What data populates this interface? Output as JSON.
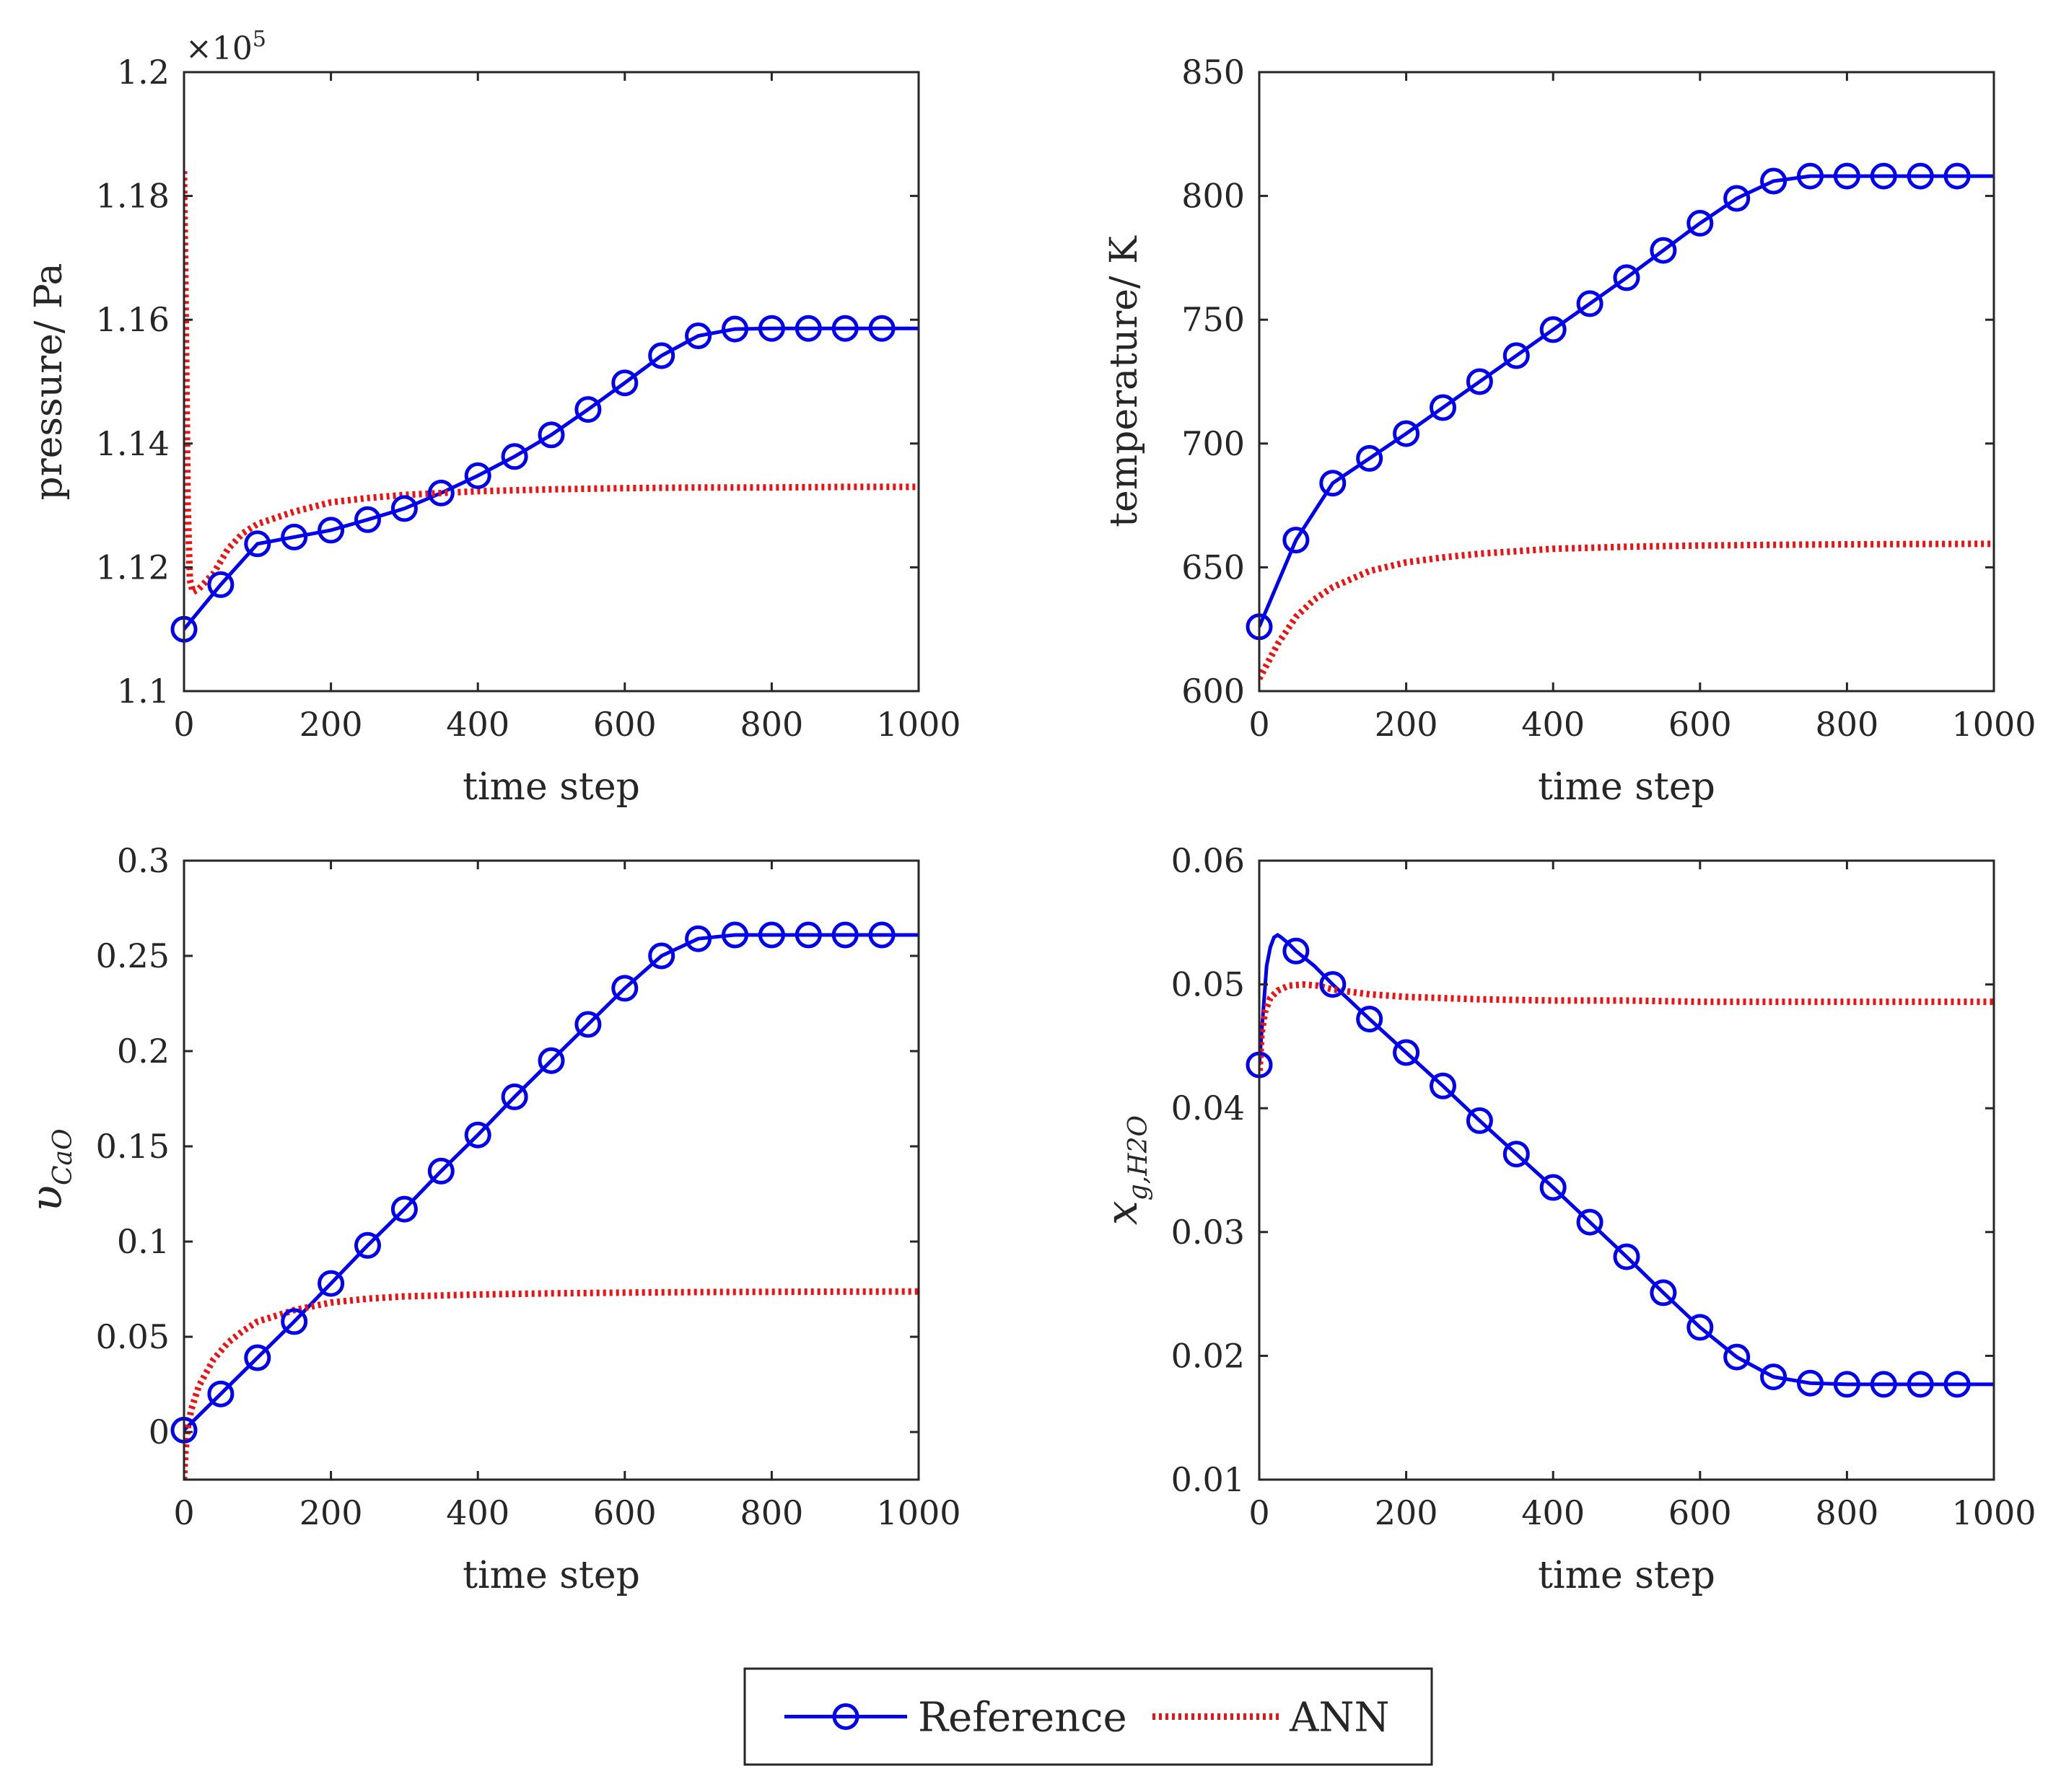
{
  "chart_data": [
    {
      "type": "line",
      "id": "pressure",
      "ylabel": "pressure/ Pa",
      "xlabel": "time step",
      "multiplier": {
        "base": "×10",
        "exponent": "5"
      },
      "xlim": [
        0,
        1000
      ],
      "ylim": [
        1.1,
        1.2
      ],
      "xticks": [
        0,
        200,
        400,
        600,
        800,
        1000
      ],
      "xtick_labels": [
        "0",
        "200",
        "400",
        "600",
        "800",
        "1000"
      ],
      "yticks": [
        1.1,
        1.12,
        1.14,
        1.16,
        1.18,
        1.2
      ],
      "ytick_labels": [
        "1.1",
        "1.12",
        "1.14",
        "1.16",
        "1.18",
        "1.2"
      ],
      "series": [
        {
          "name": "Reference",
          "style": "solid-circle",
          "color": "#0000ee",
          "x": [
            0,
            50,
            100,
            150,
            200,
            250,
            300,
            350,
            400,
            450,
            500,
            550,
            600,
            650,
            700,
            750,
            800,
            850,
            900,
            950,
            1000
          ],
          "y": [
            1.11,
            1.1172,
            1.1238,
            1.1249,
            1.126,
            1.1277,
            1.1295,
            1.132,
            1.1348,
            1.1379,
            1.1414,
            1.1455,
            1.1498,
            1.1542,
            1.1574,
            1.1585,
            1.1586,
            1.1586,
            1.1586,
            1.1586,
            1.1586
          ],
          "marker_x": [
            0,
            50,
            100,
            150,
            200,
            250,
            300,
            350,
            400,
            450,
            500,
            550,
            600,
            650,
            700,
            750,
            800,
            850,
            900,
            950
          ]
        },
        {
          "name": "ANN",
          "style": "dotted",
          "color": "#ee1111",
          "x": [
            0,
            2,
            5,
            8,
            12,
            20,
            40,
            60,
            80,
            100,
            150,
            200,
            250,
            300,
            350,
            400,
            500,
            600,
            700,
            800,
            900,
            1000
          ],
          "y": [
            1.184,
            1.165,
            1.13,
            1.118,
            1.116,
            1.1165,
            1.119,
            1.123,
            1.1255,
            1.127,
            1.129,
            1.1305,
            1.1312,
            1.1317,
            1.132,
            1.1323,
            1.1326,
            1.1328,
            1.1329,
            1.1329,
            1.133,
            1.133
          ]
        }
      ]
    },
    {
      "type": "line",
      "id": "temperature",
      "ylabel": "temperature/ K",
      "xlabel": "time step",
      "xlim": [
        0,
        1000
      ],
      "ylim": [
        600,
        850
      ],
      "xticks": [
        0,
        200,
        400,
        600,
        800,
        1000
      ],
      "xtick_labels": [
        "0",
        "200",
        "400",
        "600",
        "800",
        "1000"
      ],
      "yticks": [
        600,
        650,
        700,
        750,
        800,
        850
      ],
      "ytick_labels": [
        "600",
        "650",
        "700",
        "750",
        "800",
        "850"
      ],
      "series": [
        {
          "name": "Reference",
          "style": "solid-circle",
          "color": "#0000ee",
          "x": [
            0,
            50,
            100,
            150,
            200,
            250,
            300,
            350,
            400,
            450,
            500,
            550,
            600,
            650,
            700,
            750,
            800,
            850,
            900,
            950,
            1000
          ],
          "y": [
            626,
            661,
            684,
            694,
            704,
            714.5,
            725,
            735.5,
            746,
            756.5,
            767,
            778,
            789,
            799,
            806,
            808,
            808,
            808,
            808,
            808,
            808
          ],
          "marker_x": [
            0,
            50,
            100,
            150,
            200,
            250,
            300,
            350,
            400,
            450,
            500,
            550,
            600,
            650,
            700,
            750,
            800,
            850,
            900,
            950
          ]
        },
        {
          "name": "ANN",
          "style": "dotted",
          "color": "#ee1111",
          "x": [
            0,
            25,
            50,
            75,
            100,
            150,
            200,
            250,
            300,
            400,
            500,
            600,
            700,
            800,
            900,
            1000
          ],
          "y": [
            605,
            619,
            630,
            637,
            642,
            648.5,
            652,
            654,
            655.5,
            657.5,
            658.3,
            658.8,
            659.1,
            659.3,
            659.4,
            659.5
          ]
        }
      ]
    },
    {
      "type": "line",
      "id": "vcao",
      "ylabel": "υ",
      "ylabel_sub": "CaO",
      "xlabel": "time step",
      "xlim": [
        0,
        1000
      ],
      "ylim": [
        -0.025,
        0.3
      ],
      "xticks": [
        0,
        200,
        400,
        600,
        800,
        1000
      ],
      "xtick_labels": [
        "0",
        "200",
        "400",
        "600",
        "800",
        "1000"
      ],
      "yticks": [
        0,
        0.05,
        0.1,
        0.15,
        0.2,
        0.25,
        0.3
      ],
      "ytick_labels": [
        "0",
        "0.05",
        "0.1",
        "0.15",
        "0.2",
        "0.25",
        "0.3"
      ],
      "series": [
        {
          "name": "Reference",
          "style": "solid-circle",
          "color": "#0000ee",
          "x": [
            0,
            50,
            100,
            150,
            200,
            250,
            300,
            350,
            400,
            450,
            500,
            550,
            600,
            650,
            700,
            750,
            800,
            850,
            900,
            950,
            1000
          ],
          "y": [
            0.001,
            0.02,
            0.039,
            0.058,
            0.078,
            0.098,
            0.117,
            0.137,
            0.156,
            0.176,
            0.195,
            0.214,
            0.233,
            0.25,
            0.259,
            0.261,
            0.261,
            0.261,
            0.261,
            0.261,
            0.261
          ],
          "marker_x": [
            0,
            50,
            100,
            150,
            200,
            250,
            300,
            350,
            400,
            450,
            500,
            550,
            600,
            650,
            700,
            750,
            800,
            850,
            900,
            950
          ]
        },
        {
          "name": "ANN",
          "style": "dotted",
          "color": "#ee1111",
          "x": [
            0,
            2,
            5,
            10,
            20,
            40,
            60,
            80,
            100,
            150,
            200,
            250,
            300,
            400,
            500,
            600,
            700,
            800,
            900,
            1000
          ],
          "y": [
            -0.025,
            -0.01,
            0.002,
            0.012,
            0.024,
            0.038,
            0.047,
            0.053,
            0.058,
            0.064,
            0.068,
            0.07,
            0.0712,
            0.0722,
            0.0728,
            0.0732,
            0.0735,
            0.0736,
            0.0737,
            0.0738
          ]
        }
      ]
    },
    {
      "type": "line",
      "id": "xgh2o",
      "ylabel": "x",
      "ylabel_sub": "g,H2O",
      "xlabel": "time step",
      "xlim": [
        0,
        1000
      ],
      "ylim": [
        0.01,
        0.06
      ],
      "xticks": [
        0,
        200,
        400,
        600,
        800,
        1000
      ],
      "xtick_labels": [
        "0",
        "200",
        "400",
        "600",
        "800",
        "1000"
      ],
      "yticks": [
        0.01,
        0.02,
        0.03,
        0.04,
        0.05,
        0.06
      ],
      "ytick_labels": [
        "0.01",
        "0.02",
        "0.03",
        "0.04",
        "0.05",
        "0.06"
      ],
      "series": [
        {
          "name": "Reference",
          "style": "solid-circle",
          "color": "#0000ee",
          "x": [
            0,
            5,
            10,
            15,
            20,
            25,
            30,
            40,
            50,
            75,
            100,
            150,
            200,
            250,
            300,
            350,
            400,
            450,
            500,
            550,
            600,
            650,
            700,
            750,
            800,
            850,
            900,
            950,
            1000
          ],
          "y": [
            0.0435,
            0.0475,
            0.0515,
            0.053,
            0.0538,
            0.054,
            0.0538,
            0.0533,
            0.0527,
            0.0515,
            0.05,
            0.0472,
            0.0445,
            0.0418,
            0.039,
            0.0363,
            0.0336,
            0.0308,
            0.028,
            0.0251,
            0.0223,
            0.0199,
            0.0183,
            0.0178,
            0.0177,
            0.0177,
            0.0177,
            0.0177,
            0.0177
          ],
          "marker_x": [
            0,
            50,
            100,
            150,
            200,
            250,
            300,
            350,
            400,
            450,
            500,
            550,
            600,
            650,
            700,
            750,
            800,
            850,
            900,
            950
          ]
        },
        {
          "name": "ANN",
          "style": "dotted",
          "color": "#ee1111",
          "x": [
            0,
            3,
            8,
            15,
            25,
            40,
            60,
            80,
            100,
            150,
            200,
            300,
            400,
            500,
            600,
            700,
            800,
            900,
            1000
          ],
          "y": [
            0.0425,
            0.046,
            0.0478,
            0.0489,
            0.0495,
            0.0499,
            0.05,
            0.0499,
            0.0496,
            0.0492,
            0.049,
            0.0488,
            0.0487,
            0.0487,
            0.0486,
            0.0486,
            0.0486,
            0.0486,
            0.0486
          ]
        }
      ]
    }
  ],
  "legend": {
    "entries": [
      {
        "label": "Reference",
        "color": "#0000ee",
        "style": "solid-circle"
      },
      {
        "label": "ANN",
        "color": "#ee1111",
        "style": "dotted"
      }
    ]
  }
}
